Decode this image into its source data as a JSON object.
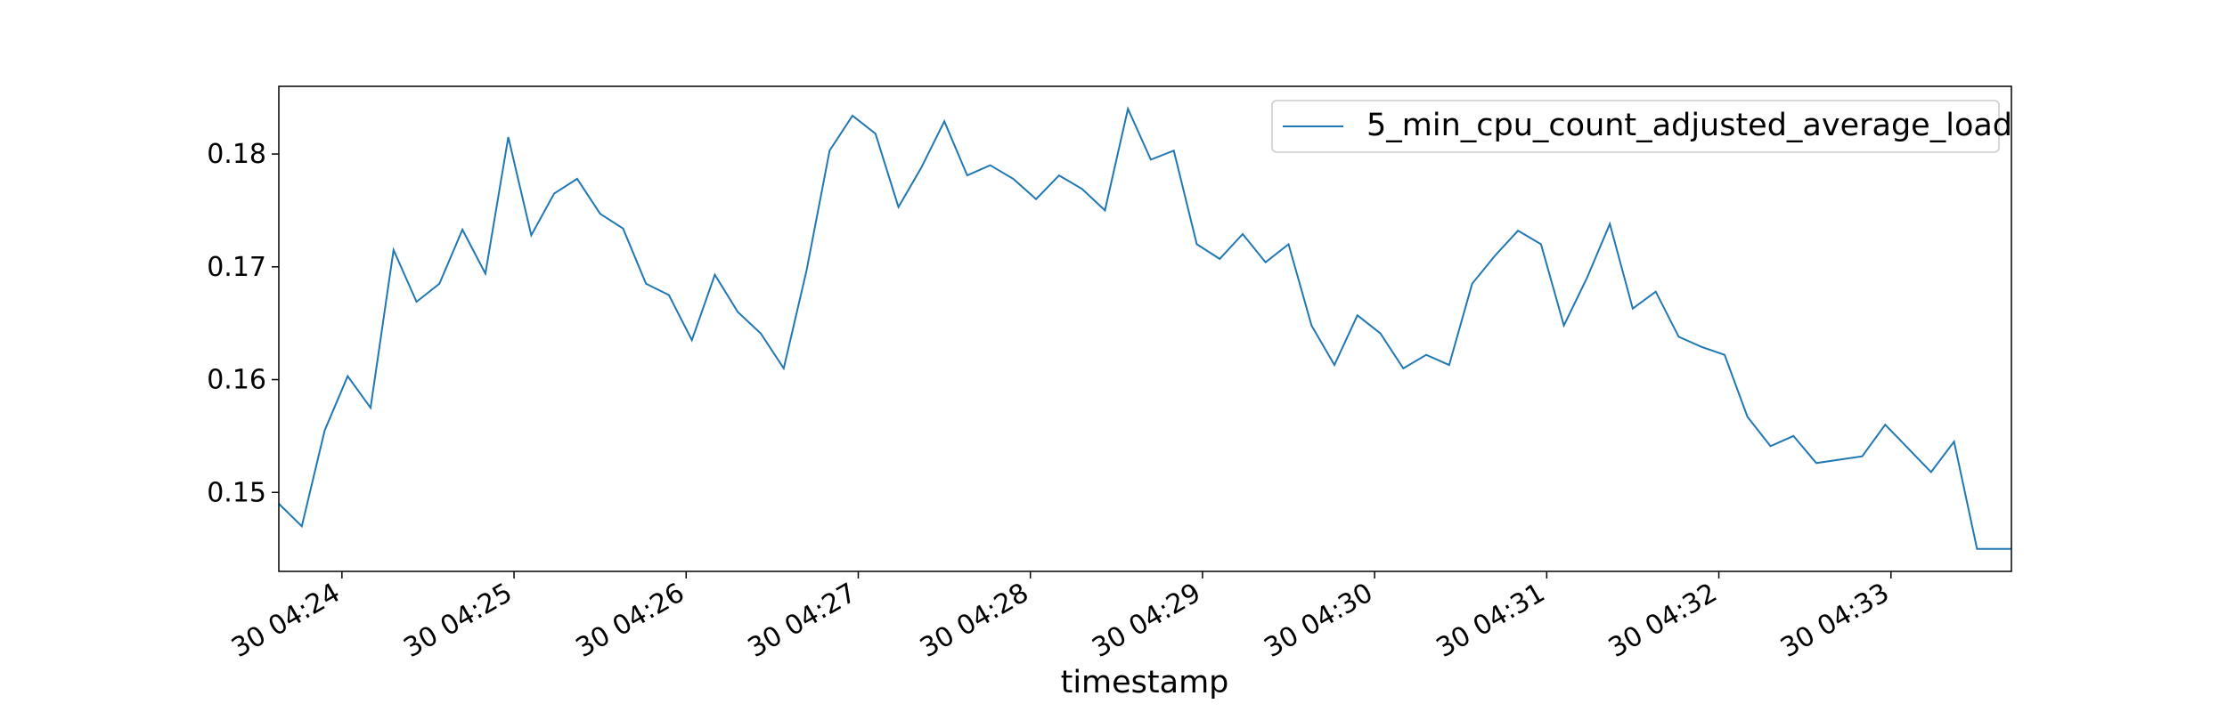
{
  "chart_data": {
    "type": "line",
    "title": "",
    "xlabel": "timestamp",
    "ylabel": "",
    "x_ticks": [
      "30 04:24",
      "30 04:25",
      "30 04:26",
      "30 04:27",
      "30 04:28",
      "30 04:29",
      "30 04:30",
      "30 04:31",
      "30 04:32",
      "30 04:33"
    ],
    "y_ticks": [
      "0.15",
      "0.16",
      "0.17",
      "0.18"
    ],
    "xlim": [
      "04:23:38",
      "04:33:42"
    ],
    "ylim": [
      0.143,
      0.186
    ],
    "legend": {
      "position": "top-right"
    },
    "grid": false,
    "series": [
      {
        "name": "5_min_cpu_count_adjusted_average_load",
        "color": "#1f77b4",
        "x": [
          "04:23:38",
          "04:23:46",
          "04:23:54",
          "04:24:02",
          "04:24:10",
          "04:24:18",
          "04:24:26",
          "04:24:34",
          "04:24:42",
          "04:24:50",
          "04:24:58",
          "04:25:06",
          "04:25:14",
          "04:25:22",
          "04:25:30",
          "04:25:38",
          "04:25:46",
          "04:25:54",
          "04:26:02",
          "04:26:10",
          "04:26:18",
          "04:26:26",
          "04:26:34",
          "04:26:42",
          "04:26:50",
          "04:26:58",
          "04:27:06",
          "04:27:14",
          "04:27:22",
          "04:27:30",
          "04:27:38",
          "04:27:46",
          "04:27:54",
          "04:28:02",
          "04:28:10",
          "04:28:18",
          "04:28:26",
          "04:28:34",
          "04:28:42",
          "04:28:50",
          "04:28:58",
          "04:29:06",
          "04:29:14",
          "04:29:22",
          "04:29:30",
          "04:29:38",
          "04:29:46",
          "04:29:54",
          "04:30:02",
          "04:30:10",
          "04:30:18",
          "04:30:26",
          "04:30:34",
          "04:30:42",
          "04:30:50",
          "04:30:58",
          "04:31:06",
          "04:31:14",
          "04:31:22",
          "04:31:30",
          "04:31:38",
          "04:31:46",
          "04:31:54",
          "04:32:02",
          "04:32:10",
          "04:32:18",
          "04:32:26",
          "04:32:34",
          "04:32:42",
          "04:32:50",
          "04:32:58",
          "04:33:06",
          "04:33:14",
          "04:33:22",
          "04:33:30",
          "04:33:38",
          "04:33:42"
        ],
        "y": [
          0.149,
          0.147,
          0.1555,
          0.1603,
          0.1575,
          0.1715,
          0.1669,
          0.1685,
          0.1733,
          0.1694,
          0.1815,
          0.1728,
          0.1765,
          0.1778,
          0.1747,
          0.1734,
          0.1685,
          0.1675,
          0.1635,
          0.1693,
          0.166,
          0.1641,
          0.161,
          0.1697,
          0.1803,
          0.1834,
          0.1818,
          0.1753,
          0.1788,
          0.1829,
          0.1781,
          0.179,
          0.1778,
          0.176,
          0.1781,
          0.1769,
          0.175,
          0.184,
          0.1795,
          0.1803,
          0.172,
          0.1707,
          0.1729,
          0.1704,
          0.172,
          0.1648,
          0.1613,
          0.1657,
          0.1641,
          0.161,
          0.1622,
          0.1613,
          0.1685,
          0.171,
          0.1732,
          0.172,
          0.1648,
          0.169,
          0.1738,
          0.1663,
          0.1678,
          0.1638,
          0.1629,
          0.1622,
          0.1567,
          0.1541,
          0.155,
          0.1526,
          0.1529,
          0.1532,
          0.156,
          0.1539,
          0.1518,
          0.1545,
          0.145,
          0.145,
          0.145
        ]
      }
    ]
  }
}
